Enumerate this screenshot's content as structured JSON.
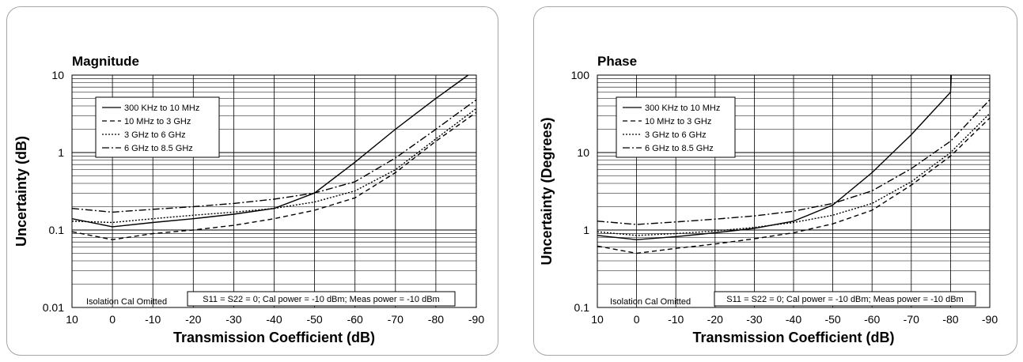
{
  "colors": {
    "line": "#000000",
    "grid": "#000000",
    "border": "#a6a6a6"
  },
  "chart_data": [
    {
      "type": "line",
      "title": "Magnitude",
      "xlabel": "Transmission Coefficient (dB)",
      "ylabel": "Uncertainty (dB)",
      "xlim": [
        10,
        -90
      ],
      "ylim": [
        0.01,
        10
      ],
      "y_scale": "log",
      "x_ticks": [
        "10",
        "0",
        "-10",
        "-20",
        "-30",
        "-40",
        "-50",
        "-60",
        "-70",
        "-80",
        "-90"
      ],
      "y_ticks": [
        "0.01",
        "0.1",
        "1",
        "10"
      ],
      "grid": true,
      "legend_position": "top-left",
      "annotations": [
        "Isolation Cal Omitted",
        "S11 = S22 = 0; Cal power = -10 dBm; Meas power = -10 dBm"
      ],
      "series": [
        {
          "name": "300 KHz to 10 MHz",
          "dash": "solid",
          "x": [
            10,
            0,
            -10,
            -20,
            -30,
            -40,
            -50,
            -60,
            -70,
            -80,
            -88
          ],
          "y": [
            0.14,
            0.11,
            0.125,
            0.14,
            0.16,
            0.19,
            0.3,
            0.75,
            2.0,
            5.0,
            10
          ]
        },
        {
          "name": "10 MHz to 3 GHz",
          "dash": "dash",
          "x": [
            10,
            0,
            -10,
            -20,
            -30,
            -40,
            -50,
            -60,
            -70,
            -80,
            -90
          ],
          "y": [
            0.095,
            0.075,
            0.09,
            0.1,
            0.115,
            0.14,
            0.18,
            0.26,
            0.55,
            1.4,
            3.3
          ]
        },
        {
          "name": "3 GHz to 6 GHz",
          "dash": "dot",
          "x": [
            10,
            0,
            -10,
            -20,
            -30,
            -40,
            -50,
            -60,
            -70,
            -80,
            -90
          ],
          "y": [
            0.13,
            0.125,
            0.14,
            0.155,
            0.17,
            0.19,
            0.23,
            0.32,
            0.6,
            1.5,
            3.7
          ]
        },
        {
          "name": "6 GHz to 8.5 GHz",
          "dash": "dashdot",
          "x": [
            10,
            0,
            -10,
            -20,
            -30,
            -40,
            -50,
            -60,
            -70,
            -80,
            -90
          ],
          "y": [
            0.19,
            0.17,
            0.185,
            0.2,
            0.22,
            0.25,
            0.3,
            0.42,
            0.85,
            2.0,
            4.8
          ]
        }
      ]
    },
    {
      "type": "line",
      "title": "Phase",
      "xlabel": "Transmission Coefficient (dB)",
      "ylabel": "Uncertainty (Degrees)",
      "xlim": [
        10,
        -90
      ],
      "ylim": [
        0.1,
        100
      ],
      "y_scale": "log",
      "x_ticks": [
        "10",
        "0",
        "-10",
        "-20",
        "-30",
        "-40",
        "-50",
        "-60",
        "-70",
        "-80",
        "-90"
      ],
      "y_ticks": [
        "0.1",
        "1",
        "10",
        "100"
      ],
      "grid": true,
      "legend_position": "top-left",
      "annotations": [
        "Isolation Cal Omitted",
        "S11 = S22 = 0; Cal power = -10 dBm; Meas power = -10 dBm"
      ],
      "series": [
        {
          "name": "300 KHz to 10 MHz",
          "dash": "solid",
          "x": [
            10,
            0,
            -10,
            -20,
            -30,
            -40,
            -50,
            -60,
            -70,
            -80,
            -80.2
          ],
          "y": [
            0.85,
            0.75,
            0.82,
            0.92,
            1.05,
            1.3,
            2.1,
            5.5,
            17,
            60,
            100
          ]
        },
        {
          "name": "10 MHz to 3 GHz",
          "dash": "dash",
          "x": [
            10,
            0,
            -10,
            -20,
            -30,
            -40,
            -50,
            -60,
            -70,
            -80,
            -90
          ],
          "y": [
            0.62,
            0.5,
            0.58,
            0.66,
            0.77,
            0.92,
            1.2,
            1.8,
            3.8,
            9,
            28
          ]
        },
        {
          "name": "3 GHz to 6 GHz",
          "dash": "dot",
          "x": [
            10,
            0,
            -10,
            -20,
            -30,
            -40,
            -50,
            -60,
            -70,
            -80,
            -90
          ],
          "y": [
            0.95,
            0.85,
            0.9,
            0.97,
            1.08,
            1.25,
            1.55,
            2.2,
            4.2,
            10,
            32
          ]
        },
        {
          "name": "6 GHz to 8.5 GHz",
          "dash": "dashdot",
          "x": [
            10,
            0,
            -10,
            -20,
            -30,
            -40,
            -50,
            -60,
            -70,
            -80,
            -90
          ],
          "y": [
            1.3,
            1.18,
            1.27,
            1.38,
            1.52,
            1.75,
            2.2,
            3.2,
            6.2,
            14,
            48
          ]
        }
      ]
    }
  ]
}
